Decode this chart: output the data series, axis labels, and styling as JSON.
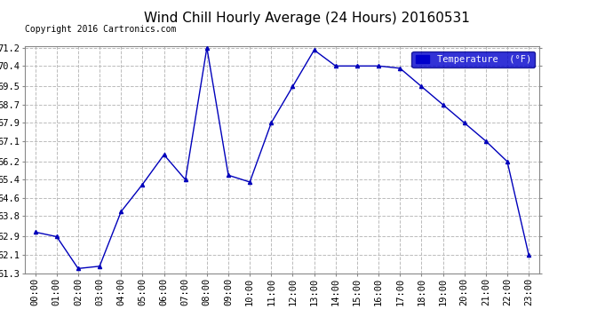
{
  "title": "Wind Chill Hourly Average (24 Hours) 20160531",
  "copyright": "Copyright 2016 Cartronics.com",
  "legend_label": "Temperature  (°F)",
  "x_labels": [
    "00:00",
    "01:00",
    "02:00",
    "03:00",
    "04:00",
    "05:00",
    "06:00",
    "07:00",
    "08:00",
    "09:00",
    "10:00",
    "11:00",
    "12:00",
    "13:00",
    "14:00",
    "15:00",
    "16:00",
    "17:00",
    "18:00",
    "19:00",
    "20:00",
    "21:00",
    "22:00",
    "23:00"
  ],
  "y_values": [
    63.1,
    62.9,
    61.5,
    61.6,
    64.0,
    65.2,
    66.5,
    65.4,
    71.2,
    65.6,
    65.3,
    67.9,
    69.5,
    71.1,
    70.4,
    70.4,
    70.4,
    70.3,
    69.5,
    68.7,
    67.9,
    67.1,
    66.2,
    62.1
  ],
  "ylim_min": 61.3,
  "ylim_max": 71.2,
  "yticks": [
    61.3,
    62.1,
    62.9,
    63.8,
    64.6,
    65.4,
    66.2,
    67.1,
    67.9,
    68.7,
    69.5,
    70.4,
    71.2
  ],
  "line_color": "#0000bb",
  "marker": "^",
  "marker_size": 3,
  "bg_color": "#ffffff",
  "plot_bg_color": "#ffffff",
  "grid_color": "#bbbbbb",
  "title_fontsize": 11,
  "copyright_fontsize": 7,
  "tick_fontsize": 7.5,
  "legend_bg": "#0000cc",
  "legend_text_color": "#ffffff",
  "legend_fontsize": 7.5
}
